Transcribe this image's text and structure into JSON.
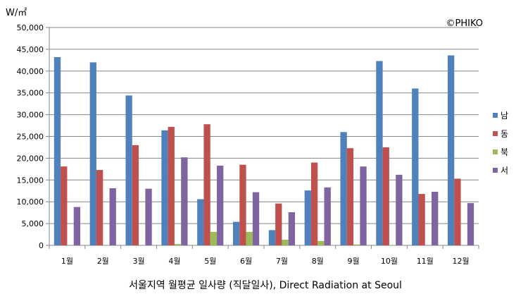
{
  "chart_data": {
    "type": "bar",
    "title": "서울지역 월평균 일사량 (직달일사), Direct Radiation at Seoul",
    "ylabel": "W/㎡",
    "watermark": "©PHIKO",
    "ylim": [
      0,
      50000
    ],
    "yticks": [
      "0",
      "5,000",
      "10,000",
      "15,000",
      "20,000",
      "25,000",
      "30,000",
      "35,000",
      "40,000",
      "45,000",
      "50,000"
    ],
    "grid": true,
    "legend_position": "right",
    "categories": [
      "1월",
      "2월",
      "3월",
      "4월",
      "5월",
      "6월",
      "7월",
      "8월",
      "9월",
      "10월",
      "11월",
      "12월"
    ],
    "series": [
      {
        "name": "남",
        "color": "#4F81BD",
        "values": [
          43200,
          42000,
          34400,
          26400,
          10600,
          5400,
          3500,
          12600,
          26000,
          42300,
          36000,
          43600
        ]
      },
      {
        "name": "동",
        "color": "#C0504D",
        "values": [
          18100,
          17300,
          23000,
          27200,
          27800,
          18500,
          9600,
          19000,
          22300,
          22500,
          11800,
          15300
        ]
      },
      {
        "name": "북",
        "color": "#9BBB59",
        "values": [
          0,
          0,
          0,
          300,
          3100,
          3100,
          1300,
          1000,
          200,
          100,
          0,
          0
        ]
      },
      {
        "name": "서",
        "color": "#8064A2",
        "values": [
          8800,
          13100,
          13000,
          20200,
          18300,
          12200,
          7600,
          13300,
          18100,
          16200,
          12300,
          9700
        ]
      }
    ]
  }
}
